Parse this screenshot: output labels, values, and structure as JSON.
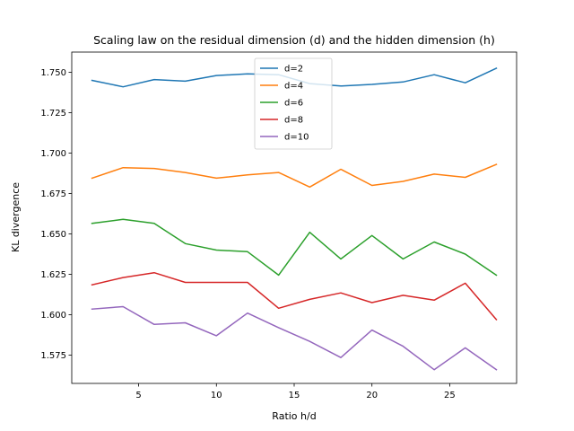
{
  "chart_data": {
    "type": "line",
    "title": "Scaling law on the residual dimension (d) and the hidden dimension (h)",
    "xlabel": "Ratio h/d",
    "ylabel": "KL divergence",
    "xlim": [
      0.7,
      29.3
    ],
    "ylim": [
      1.5575,
      1.7625
    ],
    "xticks": [
      5,
      10,
      15,
      20,
      25
    ],
    "yticks": [
      1.575,
      1.6,
      1.625,
      1.65,
      1.675,
      1.7,
      1.725,
      1.75
    ],
    "ytick_labels": [
      "1.575",
      "1.600",
      "1.625",
      "1.650",
      "1.675",
      "1.700",
      "1.725",
      "1.750"
    ],
    "grid": false,
    "legend_position": "top-center",
    "x": [
      2,
      4,
      6,
      8,
      10,
      12,
      14,
      16,
      18,
      20,
      22,
      24,
      26,
      28
    ],
    "series": [
      {
        "name": "d=2",
        "color": "#1f77b4",
        "values": [
          1.745,
          1.741,
          1.7455,
          1.7445,
          1.748,
          1.749,
          1.7485,
          1.743,
          1.7415,
          1.7425,
          1.744,
          1.7485,
          1.7435,
          1.7525
        ]
      },
      {
        "name": "d=4",
        "color": "#ff7f0e",
        "values": [
          1.6845,
          1.691,
          1.6905,
          1.688,
          1.6845,
          1.6865,
          1.688,
          1.679,
          1.69,
          1.68,
          1.6825,
          1.687,
          1.685,
          1.693
        ]
      },
      {
        "name": "d=6",
        "color": "#2ca02c",
        "values": [
          1.6565,
          1.659,
          1.6565,
          1.644,
          1.64,
          1.639,
          1.6245,
          1.651,
          1.6345,
          1.649,
          1.6345,
          1.645,
          1.6375,
          1.6245
        ]
      },
      {
        "name": "d=8",
        "color": "#d62728",
        "values": [
          1.6185,
          1.623,
          1.626,
          1.62,
          1.62,
          1.62,
          1.604,
          1.6095,
          1.6135,
          1.6075,
          1.612,
          1.609,
          1.6195,
          1.597
        ]
      },
      {
        "name": "d=10",
        "color": "#9467bd",
        "values": [
          1.6035,
          1.605,
          1.594,
          1.595,
          1.587,
          1.601,
          1.592,
          1.5835,
          1.5735,
          1.5905,
          1.5805,
          1.566,
          1.5795,
          1.566
        ]
      }
    ]
  }
}
